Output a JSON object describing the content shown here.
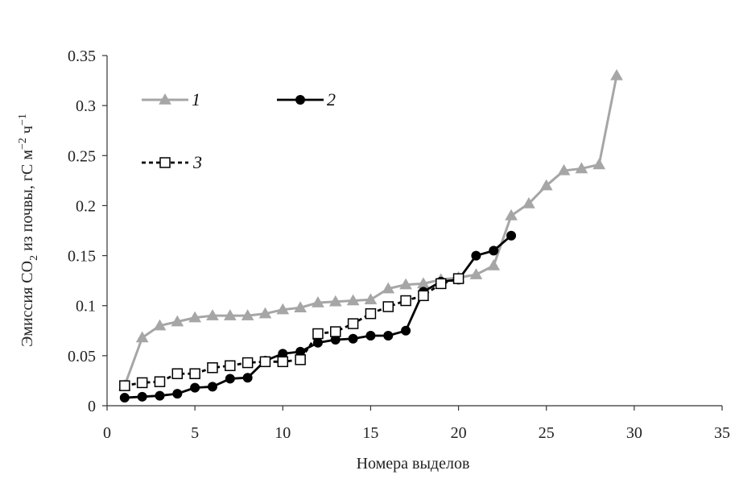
{
  "chart_data": {
    "type": "line",
    "xlabel": "Номера выделов",
    "ylabel": {
      "prefix": "Эмиссия CO",
      "prefix_sub": "2",
      "middle": " из почвы, гС м",
      "sup1": "−2",
      "middle2": " ч",
      "sup2": "−1"
    },
    "xlim": [
      0,
      35
    ],
    "ylim": [
      0,
      0.35
    ],
    "xticks": [
      "0",
      "5",
      "10",
      "15",
      "20",
      "25",
      "30",
      "35"
    ],
    "yticks": [
      "0",
      "0.05",
      "0.1",
      "0.15",
      "0.2",
      "0.25",
      "0.3",
      "0.35"
    ],
    "grid": false,
    "legend_placement": "top-left",
    "series": [
      {
        "name": "1",
        "color": "#a6a6a6",
        "marker": "triangle",
        "line": "solid",
        "x": [
          1,
          2,
          3,
          4,
          5,
          6,
          7,
          8,
          9,
          10,
          11,
          12,
          13,
          14,
          15,
          16,
          17,
          18,
          19,
          20,
          21,
          22,
          23,
          24,
          25,
          26,
          27,
          28,
          29
        ],
        "y": [
          0.02,
          0.068,
          0.08,
          0.084,
          0.088,
          0.09,
          0.09,
          0.09,
          0.092,
          0.096,
          0.098,
          0.103,
          0.104,
          0.105,
          0.106,
          0.117,
          0.121,
          0.122,
          0.126,
          0.128,
          0.131,
          0.14,
          0.19,
          0.202,
          0.22,
          0.235,
          0.237,
          0.241,
          0.33
        ]
      },
      {
        "name": "2",
        "color": "#000000",
        "marker": "circle",
        "line": "solid",
        "x": [
          1,
          2,
          3,
          4,
          5,
          6,
          7,
          8,
          9,
          10,
          11,
          12,
          13,
          14,
          15,
          16,
          17,
          18,
          19,
          20,
          21,
          22,
          23
        ],
        "y": [
          0.008,
          0.009,
          0.01,
          0.012,
          0.018,
          0.019,
          0.027,
          0.028,
          0.045,
          0.052,
          0.054,
          0.063,
          0.066,
          0.067,
          0.07,
          0.07,
          0.075,
          0.114,
          0.124,
          0.126,
          0.15,
          0.155,
          0.17
        ]
      },
      {
        "name": "3",
        "color": "#000000",
        "marker": "square-open",
        "line": "dashed",
        "x": [
          1,
          2,
          3,
          4,
          5,
          6,
          7,
          8,
          9,
          10,
          11,
          12,
          13,
          14,
          15,
          16,
          17,
          18,
          19,
          20
        ],
        "y": [
          0.02,
          0.023,
          0.024,
          0.032,
          0.032,
          0.038,
          0.04,
          0.043,
          0.044,
          0.044,
          0.046,
          0.072,
          0.074,
          0.082,
          0.092,
          0.099,
          0.105,
          0.11,
          0.122,
          0.127
        ]
      }
    ]
  }
}
